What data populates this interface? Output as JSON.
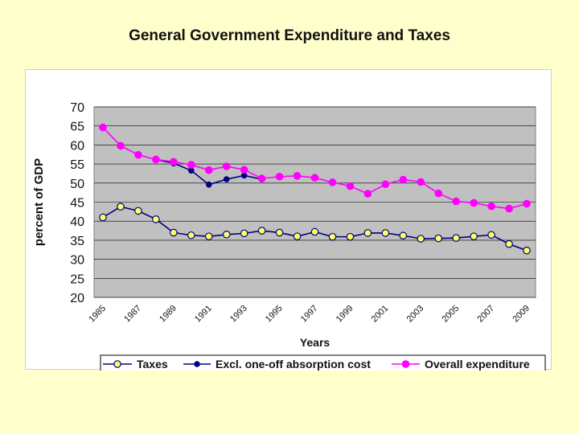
{
  "slide": {
    "title": "General Government Expenditure and Taxes"
  },
  "colors": {
    "background": "#ffffcc",
    "plot_area": "#c0c0c0",
    "taxes_fill": "#ffff66",
    "taxes_line": "#000080",
    "excl_line": "#000080",
    "overall": "#ff00ff"
  },
  "chart_data": {
    "type": "line",
    "title": "General Government Expenditure and Taxes",
    "xlabel": "Years",
    "ylabel": "percent of GDP",
    "ylim": [
      20,
      70
    ],
    "yticks": [
      20,
      25,
      30,
      35,
      40,
      45,
      50,
      55,
      60,
      65,
      70
    ],
    "grid": true,
    "legend_position": "bottom",
    "x": [
      1985,
      1986,
      1987,
      1988,
      1989,
      1990,
      1991,
      1992,
      1993,
      1994,
      1995,
      1996,
      1997,
      1998,
      1999,
      2000,
      2001,
      2002,
      2003,
      2004,
      2005,
      2006,
      2007,
      2008,
      2009
    ],
    "xticks": [
      "1985",
      "1987",
      "1989",
      "1991",
      "1993",
      "1995",
      "1997",
      "1999",
      "2001",
      "2003",
      "2005",
      "2007",
      "2009"
    ],
    "series": [
      {
        "name": "Taxes",
        "values": [
          41,
          43.8,
          42.7,
          40.5,
          37,
          36.3,
          36,
          36.5,
          36.8,
          37.5,
          37,
          36,
          37.2,
          35.9,
          35.9,
          36.9,
          36.9,
          36.2,
          35.4,
          35.5,
          35.6,
          36,
          36.4,
          34,
          32.3
        ]
      },
      {
        "name": "Excl. one-off absorption cost",
        "values": [
          null,
          null,
          null,
          56.2,
          55.2,
          53.3,
          49.6,
          51,
          52,
          51,
          null,
          null,
          null,
          null,
          null,
          null,
          null,
          null,
          null,
          null,
          null,
          null,
          null,
          null,
          null
        ]
      },
      {
        "name": "Overall expenditure",
        "values": [
          64.6,
          59.8,
          57.4,
          56.2,
          55.6,
          54.8,
          53.4,
          54.4,
          53.5,
          51.2,
          51.7,
          51.9,
          51.4,
          50.2,
          49.2,
          47.2,
          49.7,
          50.9,
          50.3,
          47.3,
          45.2,
          44.8,
          43.9,
          43.3,
          44.6
        ]
      }
    ]
  }
}
